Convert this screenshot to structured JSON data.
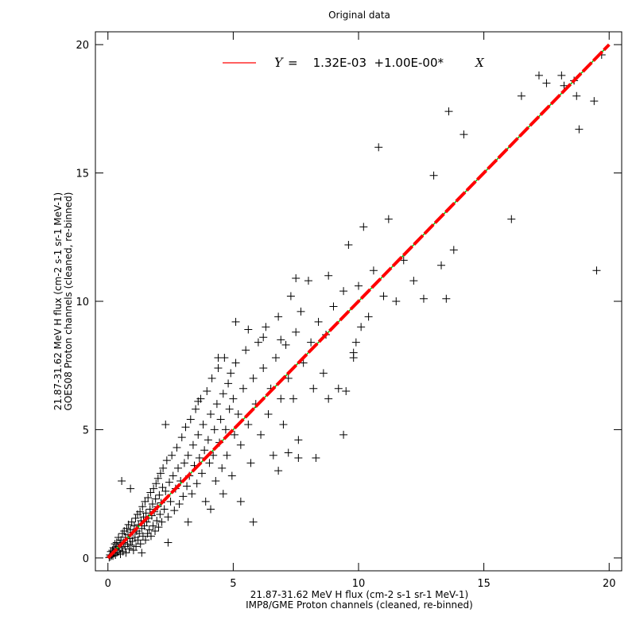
{
  "chart_data": {
    "type": "scatter",
    "title": "Original data",
    "xlabel_line1": "21.87-31.62 MeV H flux (cm-2 s-1 sr-1 MeV-1)",
    "xlabel_line2": "IMP8/GME Proton channels (cleaned, re-binned)",
    "ylabel_line1": "21.87-31.62 MeV H flux (cm-2 s-1 sr-1 MeV-1)",
    "ylabel_line2": "GOES08 Proton channels (cleaned, re-binned)",
    "xlim": [
      -0.5,
      20.5
    ],
    "ylim": [
      -0.5,
      20.5
    ],
    "xticks": [
      0,
      5,
      10,
      15,
      20
    ],
    "yticks": [
      0,
      5,
      10,
      15,
      20
    ],
    "xtick_labels": [
      "0",
      "5",
      "10",
      "15",
      "20"
    ],
    "ytick_labels": [
      "0",
      "5",
      "10",
      "15",
      "20"
    ],
    "grid": false,
    "legend_position": "top-center",
    "fit": {
      "legend_y": "Y",
      "legend_eq": "=    1.32E-03  +1.00E-00*",
      "legend_x": "X",
      "intercept": 0.00132,
      "slope": 1.0,
      "line_color": "#ff0000",
      "overlay_color": "#00c000"
    },
    "marker": "+",
    "marker_color": "#000000",
    "points": [
      [
        0.05,
        0.02
      ],
      [
        0.08,
        0.12
      ],
      [
        0.1,
        0.05
      ],
      [
        0.12,
        0.25
      ],
      [
        0.15,
        0.1
      ],
      [
        0.18,
        0.3
      ],
      [
        0.2,
        0.08
      ],
      [
        0.22,
        0.4
      ],
      [
        0.25,
        0.18
      ],
      [
        0.28,
        0.55
      ],
      [
        0.3,
        0.12
      ],
      [
        0.32,
        0.35
      ],
      [
        0.35,
        0.6
      ],
      [
        0.38,
        0.22
      ],
      [
        0.4,
        0.45
      ],
      [
        0.42,
        0.8
      ],
      [
        0.45,
        0.3
      ],
      [
        0.48,
        0.55
      ],
      [
        0.5,
        0.15
      ],
      [
        0.52,
        0.7
      ],
      [
        0.55,
        0.4
      ],
      [
        0.58,
        0.95
      ],
      [
        0.6,
        0.25
      ],
      [
        0.62,
        0.6
      ],
      [
        0.65,
        1.05
      ],
      [
        0.68,
        0.45
      ],
      [
        0.7,
        0.8
      ],
      [
        0.72,
        0.2
      ],
      [
        0.75,
        1.15
      ],
      [
        0.78,
        0.55
      ],
      [
        0.8,
        0.9
      ],
      [
        0.82,
        1.3
      ],
      [
        0.85,
        0.35
      ],
      [
        0.88,
        0.75
      ],
      [
        0.9,
        1.1
      ],
      [
        0.92,
        0.5
      ],
      [
        0.95,
        1.4
      ],
      [
        0.98,
        0.65
      ],
      [
        1.0,
        1.0
      ],
      [
        1.02,
        0.3
      ],
      [
        1.05,
        1.25
      ],
      [
        1.08,
        0.8
      ],
      [
        1.1,
        1.55
      ],
      [
        1.12,
        0.45
      ],
      [
        1.15,
        1.05
      ],
      [
        1.18,
        1.7
      ],
      [
        1.2,
        0.7
      ],
      [
        1.22,
        1.3
      ],
      [
        1.25,
        0.95
      ],
      [
        1.28,
        1.8
      ],
      [
        1.3,
        0.55
      ],
      [
        1.32,
        1.45
      ],
      [
        1.35,
        1.15
      ],
      [
        1.38,
        2.0
      ],
      [
        1.4,
        0.85
      ],
      [
        1.42,
        1.6
      ],
      [
        1.45,
        1.25
      ],
      [
        1.48,
        2.2
      ],
      [
        1.5,
        0.7
      ],
      [
        1.52,
        1.75
      ],
      [
        1.55,
        1.4
      ],
      [
        1.58,
        0.95
      ],
      [
        1.6,
        2.35
      ],
      [
        1.62,
        1.55
      ],
      [
        1.65,
        1.1
      ],
      [
        1.68,
        1.9
      ],
      [
        1.7,
        2.55
      ],
      [
        1.72,
        0.85
      ],
      [
        1.75,
        1.65
      ],
      [
        1.78,
        2.1
      ],
      [
        1.8,
        1.25
      ],
      [
        1.82,
        2.7
      ],
      [
        1.85,
        1.8
      ],
      [
        1.88,
        1.05
      ],
      [
        1.9,
        2.3
      ],
      [
        1.92,
        2.9
      ],
      [
        1.95,
        1.45
      ],
      [
        1.98,
        2.0
      ],
      [
        2.0,
        3.1
      ],
      [
        2.02,
        1.2
      ],
      [
        2.05,
        2.45
      ],
      [
        2.08,
        1.7
      ],
      [
        2.1,
        3.3
      ],
      [
        2.12,
        2.15
      ],
      [
        2.15,
        1.4
      ],
      [
        2.18,
        2.75
      ],
      [
        2.2,
        3.5
      ],
      [
        2.25,
        1.9
      ],
      [
        2.3,
        2.6
      ],
      [
        2.35,
        3.8
      ],
      [
        2.4,
        1.6
      ],
      [
        2.45,
        2.95
      ],
      [
        2.5,
        2.2
      ],
      [
        2.55,
        4.0
      ],
      [
        2.6,
        3.2
      ],
      [
        2.65,
        1.85
      ],
      [
        2.7,
        2.7
      ],
      [
        2.75,
        4.3
      ],
      [
        2.8,
        3.5
      ],
      [
        2.85,
        2.1
      ],
      [
        2.9,
        3.0
      ],
      [
        2.95,
        4.7
      ],
      [
        3.0,
        2.4
      ],
      [
        3.05,
        3.7
      ],
      [
        3.1,
        5.1
      ],
      [
        3.15,
        2.8
      ],
      [
        3.2,
        4.0
      ],
      [
        3.25,
        3.2
      ],
      [
        3.3,
        5.4
      ],
      [
        3.35,
        2.5
      ],
      [
        3.4,
        4.4
      ],
      [
        3.45,
        3.6
      ],
      [
        3.5,
        5.8
      ],
      [
        3.55,
        2.9
      ],
      [
        3.6,
        4.8
      ],
      [
        3.65,
        3.9
      ],
      [
        3.7,
        6.2
      ],
      [
        3.75,
        3.3
      ],
      [
        3.8,
        5.2
      ],
      [
        3.85,
        4.2
      ],
      [
        3.9,
        2.2
      ],
      [
        3.95,
        6.5
      ],
      [
        4.0,
        4.6
      ],
      [
        4.05,
        3.7
      ],
      [
        4.1,
        5.6
      ],
      [
        4.15,
        7.0
      ],
      [
        4.2,
        4.0
      ],
      [
        4.25,
        5.0
      ],
      [
        4.3,
        3.0
      ],
      [
        4.35,
        6.0
      ],
      [
        4.4,
        7.4
      ],
      [
        4.45,
        4.5
      ],
      [
        4.5,
        5.4
      ],
      [
        4.55,
        3.5
      ],
      [
        4.6,
        6.4
      ],
      [
        4.65,
        7.8
      ],
      [
        4.7,
        5.0
      ],
      [
        4.75,
        4.0
      ],
      [
        4.8,
        6.8
      ],
      [
        4.85,
        5.8
      ],
      [
        4.9,
        7.2
      ],
      [
        4.95,
        3.2
      ],
      [
        5.0,
        6.2
      ],
      [
        5.05,
        4.8
      ],
      [
        5.1,
        7.6
      ],
      [
        5.2,
        5.6
      ],
      [
        5.3,
        4.4
      ],
      [
        5.4,
        6.6
      ],
      [
        5.5,
        8.1
      ],
      [
        5.6,
        5.2
      ],
      [
        5.7,
        3.7
      ],
      [
        5.8,
        7.0
      ],
      [
        5.9,
        6.0
      ],
      [
        6.0,
        8.4
      ],
      [
        6.1,
        4.8
      ],
      [
        6.2,
        7.4
      ],
      [
        6.3,
        9.0
      ],
      [
        6.4,
        5.6
      ],
      [
        6.5,
        6.6
      ],
      [
        6.6,
        4.0
      ],
      [
        6.7,
        7.8
      ],
      [
        6.8,
        9.4
      ],
      [
        6.9,
        6.2
      ],
      [
        7.0,
        5.2
      ],
      [
        7.1,
        8.3
      ],
      [
        7.2,
        7.0
      ],
      [
        7.3,
        10.2
      ],
      [
        7.4,
        6.2
      ],
      [
        7.5,
        8.8
      ],
      [
        7.6,
        4.6
      ],
      [
        7.7,
        9.6
      ],
      [
        7.8,
        7.6
      ],
      [
        8.0,
        10.8
      ],
      [
        8.1,
        8.4
      ],
      [
        8.2,
        6.6
      ],
      [
        8.4,
        9.2
      ],
      [
        8.6,
        7.2
      ],
      [
        8.8,
        11.0
      ],
      [
        9.0,
        9.8
      ],
      [
        9.2,
        6.6
      ],
      [
        9.4,
        10.4
      ],
      [
        9.6,
        12.2
      ],
      [
        9.8,
        8.0
      ],
      [
        10.0,
        10.6
      ],
      [
        10.2,
        12.9
      ],
      [
        10.4,
        9.4
      ],
      [
        10.6,
        11.2
      ],
      [
        10.8,
        16.0
      ],
      [
        11.0,
        10.2
      ],
      [
        11.2,
        13.2
      ],
      [
        11.5,
        10.0
      ],
      [
        11.8,
        11.6
      ],
      [
        12.2,
        10.8
      ],
      [
        12.6,
        10.1
      ],
      [
        13.0,
        14.9
      ],
      [
        13.3,
        11.4
      ],
      [
        13.5,
        10.1
      ],
      [
        13.6,
        17.4
      ],
      [
        13.8,
        12.0
      ],
      [
        14.2,
        16.5
      ],
      [
        16.1,
        13.2
      ],
      [
        16.5,
        18.0
      ],
      [
        17.2,
        18.8
      ],
      [
        17.5,
        18.5
      ],
      [
        18.1,
        18.8
      ],
      [
        18.2,
        18.4
      ],
      [
        18.6,
        18.6
      ],
      [
        18.7,
        18.0
      ],
      [
        18.8,
        16.7
      ],
      [
        19.4,
        17.8
      ],
      [
        19.5,
        11.2
      ],
      [
        19.7,
        19.6
      ],
      [
        0.55,
        3.0
      ],
      [
        0.9,
        2.7
      ],
      [
        1.35,
        0.2
      ],
      [
        2.4,
        0.6
      ],
      [
        3.2,
        1.4
      ],
      [
        4.1,
        1.9
      ],
      [
        4.6,
        2.5
      ],
      [
        5.3,
        2.2
      ],
      [
        5.8,
        1.4
      ],
      [
        6.8,
        3.4
      ],
      [
        7.2,
        4.1
      ],
      [
        7.6,
        3.9
      ],
      [
        8.3,
        3.9
      ],
      [
        8.8,
        6.2
      ],
      [
        9.4,
        4.8
      ],
      [
        9.5,
        6.5
      ],
      [
        9.8,
        7.8
      ],
      [
        2.3,
        5.2
      ],
      [
        3.6,
        6.1
      ],
      [
        4.4,
        7.8
      ],
      [
        5.1,
        9.2
      ],
      [
        5.6,
        8.9
      ],
      [
        6.2,
        8.6
      ],
      [
        6.9,
        8.5
      ],
      [
        7.5,
        10.9
      ],
      [
        8.7,
        8.7
      ],
      [
        9.9,
        8.4
      ],
      [
        10.1,
        9.0
      ]
    ]
  }
}
